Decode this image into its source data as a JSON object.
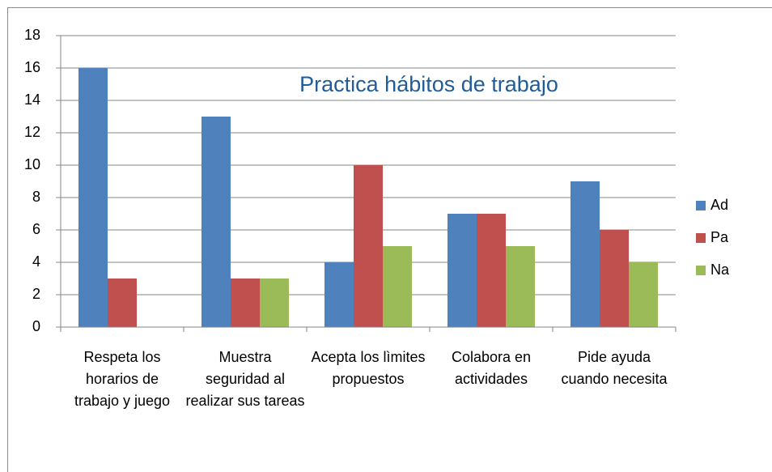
{
  "chart_data": {
    "type": "bar",
    "title": "Practica hábitos de trabajo",
    "categories": [
      "Respeta los horarios de trabajo y juego",
      "Muestra seguridad al realizar sus tareas",
      "Acepta los lìmites propuestos",
      "Colabora en actividades",
      "Pide ayuda cuando necesita"
    ],
    "series": [
      {
        "name": "Ad",
        "color": "#4f81bd",
        "values": [
          16,
          13,
          4,
          7,
          9
        ]
      },
      {
        "name": "Pa",
        "color": "#c0504d",
        "values": [
          3,
          3,
          10,
          7,
          6
        ]
      },
      {
        "name": "Na",
        "color": "#9bbb59",
        "values": [
          0,
          3,
          5,
          5,
          4
        ]
      }
    ],
    "ylim": [
      0,
      18
    ],
    "yticks": [
      0,
      2,
      4,
      6,
      8,
      10,
      12,
      14,
      16,
      18
    ],
    "grid": true,
    "legend": "right"
  }
}
